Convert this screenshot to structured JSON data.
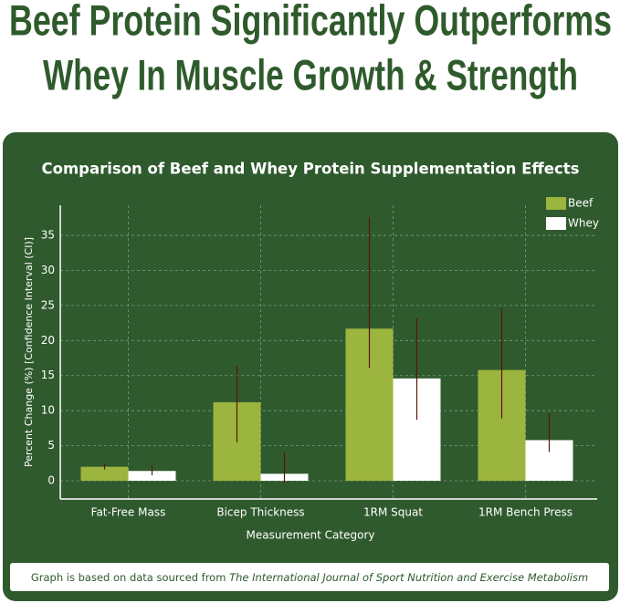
{
  "headline": [
    "Beef Protein Significantly Outperforms",
    "Whey In Muscle Growth & Strength"
  ],
  "chart_data": {
    "type": "bar",
    "title": "Comparison of Beef and Whey Protein Supplementation Effects",
    "x_label": "Measurement Category",
    "y_label": "Percent Change (%) [Confidence Interval (CI)]",
    "categories": [
      "Fat-Free Mass",
      "Bicep Thickness",
      "1RM Squat",
      "1RM Bench Press"
    ],
    "series": [
      {
        "name": "Beef",
        "color": "#9cb53f",
        "values": [
          2.0,
          11.2,
          21.7,
          15.8
        ],
        "ci_low": [
          1.6,
          5.5,
          16.1,
          8.9
        ],
        "ci_high": [
          2.5,
          16.4,
          37.6,
          24.6
        ]
      },
      {
        "name": "Whey",
        "color": "#ffffff",
        "values": [
          1.4,
          1.0,
          14.6,
          5.8
        ],
        "ci_low": [
          0.8,
          -0.3,
          8.7,
          4.1
        ],
        "ci_high": [
          2.2,
          4.0,
          23.2,
          9.6
        ]
      }
    ],
    "error_color": "#5a1608",
    "ylim": [
      -2.6,
      39.3
    ],
    "yticks": [
      0,
      5,
      10,
      15,
      20,
      25,
      30,
      35
    ],
    "grid": true,
    "legend": "top-right"
  },
  "footer": {
    "text": "Graph is based on data sourced from ",
    "source": "The International Journal of Sport Nutrition and Exercise Metabolism"
  }
}
